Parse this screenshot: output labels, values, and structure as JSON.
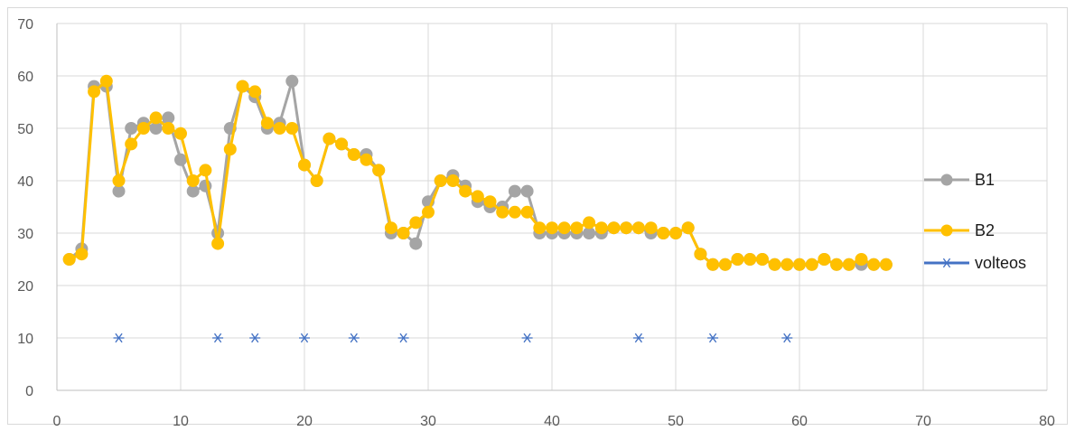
{
  "chart_data": {
    "type": "line",
    "title": "",
    "xlabel": "",
    "ylabel": "",
    "xlim": [
      0,
      80
    ],
    "ylim": [
      0,
      70
    ],
    "x_ticks": [
      0,
      10,
      20,
      30,
      40,
      50,
      60,
      70,
      80
    ],
    "y_ticks": [
      0,
      10,
      20,
      30,
      40,
      50,
      60,
      70
    ],
    "grid": true,
    "legend_position": "right",
    "series": [
      {
        "name": "B1",
        "kind": "line-marker",
        "color": "#a5a5a5",
        "x": [
          1,
          2,
          3,
          4,
          5,
          6,
          7,
          8,
          9,
          10,
          11,
          12,
          13,
          14,
          15,
          16,
          17,
          18,
          19,
          20,
          21,
          22,
          23,
          24,
          25,
          26,
          27,
          28,
          29,
          30,
          31,
          32,
          33,
          34,
          35,
          36,
          37,
          38,
          39,
          40,
          41,
          42,
          43,
          44,
          45,
          46,
          47,
          48,
          49,
          50,
          51,
          52,
          53,
          54,
          55,
          56,
          57,
          58,
          59,
          60,
          61,
          62,
          63,
          64,
          65,
          66,
          67
        ],
        "y": [
          25,
          27,
          58,
          58,
          38,
          50,
          51,
          50,
          52,
          44,
          38,
          39,
          30,
          50,
          58,
          56,
          50,
          51,
          59,
          43,
          40,
          48,
          47,
          45,
          45,
          42,
          30,
          30,
          28,
          36,
          40,
          41,
          39,
          36,
          35,
          35,
          38,
          38,
          30,
          30,
          30,
          30,
          30,
          30,
          31,
          31,
          31,
          30,
          30,
          30,
          31,
          26,
          24,
          24,
          25,
          25,
          25,
          24,
          24,
          24,
          24,
          25,
          24,
          24,
          24,
          24,
          24
        ]
      },
      {
        "name": "B2",
        "kind": "line-marker",
        "color": "#ffc000",
        "x": [
          1,
          2,
          3,
          4,
          5,
          6,
          7,
          8,
          9,
          10,
          11,
          12,
          13,
          14,
          15,
          16,
          17,
          18,
          19,
          20,
          21,
          22,
          23,
          24,
          25,
          26,
          27,
          28,
          29,
          30,
          31,
          32,
          33,
          34,
          35,
          36,
          37,
          38,
          39,
          40,
          41,
          42,
          43,
          44,
          45,
          46,
          47,
          48,
          49,
          50,
          51,
          52,
          53,
          54,
          55,
          56,
          57,
          58,
          59,
          60,
          61,
          62,
          63,
          64,
          65,
          66,
          67
        ],
        "y": [
          25,
          26,
          57,
          59,
          40,
          47,
          50,
          52,
          50,
          49,
          40,
          42,
          28,
          46,
          58,
          57,
          51,
          50,
          50,
          43,
          40,
          48,
          47,
          45,
          44,
          42,
          31,
          30,
          32,
          34,
          40,
          40,
          38,
          37,
          36,
          34,
          34,
          34,
          31,
          31,
          31,
          31,
          32,
          31,
          31,
          31,
          31,
          31,
          30,
          30,
          31,
          26,
          24,
          24,
          25,
          25,
          25,
          24,
          24,
          24,
          24,
          25,
          24,
          24,
          25,
          24,
          24
        ]
      },
      {
        "name": "volteos",
        "kind": "marker-only",
        "color": "#4472c4",
        "x": [
          5,
          13,
          16,
          20,
          24,
          28,
          38,
          47,
          53,
          59
        ],
        "y": [
          10,
          10,
          10,
          10,
          10,
          10,
          10,
          10,
          10,
          10
        ]
      }
    ]
  }
}
